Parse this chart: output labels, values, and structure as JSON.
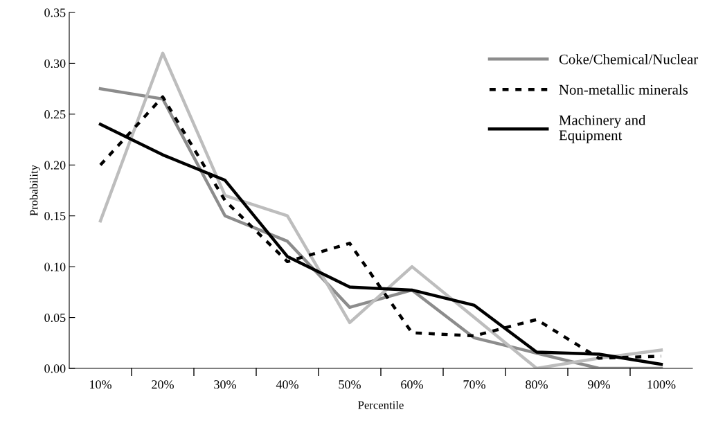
{
  "chart_data": {
    "type": "line",
    "xlabel": "Percentile",
    "ylabel": "Probability",
    "categories": [
      "10%",
      "20%",
      "30%",
      "40%",
      "50%",
      "60%",
      "70%",
      "80%",
      "90%",
      "100%"
    ],
    "series": [
      {
        "name": "Coke/Chemical/Nuclear",
        "color": "#8c8c8c",
        "line_style": "solid",
        "values": [
          0.275,
          0.265,
          0.15,
          0.125,
          0.06,
          0.077,
          0.03,
          0.015,
          0.0,
          0.0
        ]
      },
      {
        "color": "#bdbdbd",
        "line_style": "solid",
        "values": [
          0.145,
          0.31,
          0.17,
          0.15,
          0.045,
          0.1,
          0.05,
          0.0,
          0.01,
          0.018
        ]
      },
      {
        "name": "Non-metallic minerals",
        "color": "#000000",
        "line_style": "dashed",
        "values": [
          0.2,
          0.267,
          0.165,
          0.105,
          0.123,
          0.035,
          0.032,
          0.048,
          0.01,
          0.012
        ]
      },
      {
        "name": "Machinery and\nEquipment",
        "color": "#000000",
        "line_style": "solid",
        "values": [
          0.24,
          0.21,
          0.185,
          0.11,
          0.08,
          0.077,
          0.062,
          0.016,
          0.014,
          0.004
        ]
      }
    ],
    "ylim": [
      0,
      0.35
    ],
    "yticks": [
      {
        "value": 0,
        "label": "0.00"
      },
      {
        "value": 0.05,
        "label": "0.05"
      },
      {
        "value": 0.1,
        "label": "0.10"
      },
      {
        "value": 0.15,
        "label": "0.15"
      },
      {
        "value": 0.2,
        "label": "0.20"
      },
      {
        "value": 0.25,
        "label": "0.25"
      },
      {
        "value": 0.3,
        "label": "0.30"
      },
      {
        "value": 0.35,
        "label": "0.35"
      }
    ],
    "grid": false,
    "legend": "top right",
    "marker": "none"
  }
}
